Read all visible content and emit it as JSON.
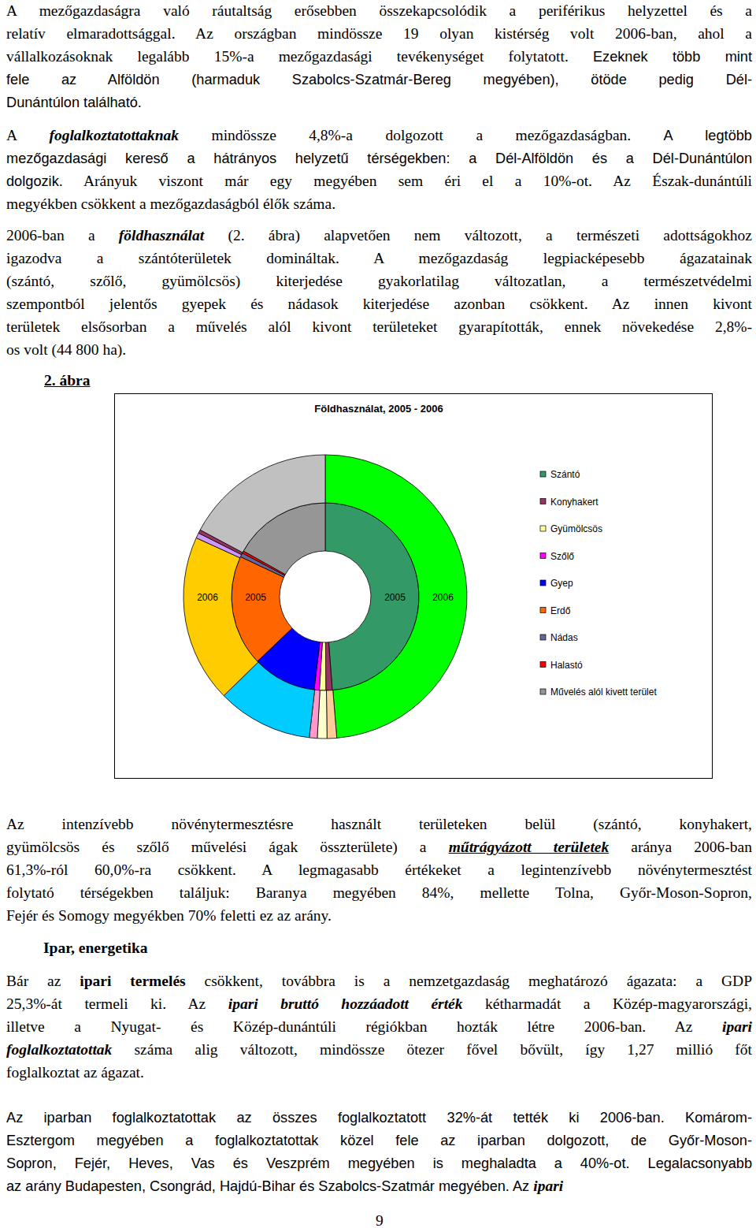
{
  "document": {
    "blocks": [
      {
        "kind": "paragraph",
        "lines": [
          [
            "A mezőgazdaságra való ráutaltság erősebben összekapcsolódik a periférikus helyzettel és a"
          ],
          [
            "relatív elmaradottsággal. Az országban mindössze 19 olyan kistérség volt 2006-ban, ahol a"
          ],
          [
            "vállalkozásoknak legalább 15%-a mezőgazdasági tevékenységet folytatott. ",
            {
              "text": "Ezeknek több mint",
              "style": "sans"
            }
          ],
          [
            {
              "text": "fele az Alföldön (harmaduk Szabolcs-Szatmár-Bereg megyében), ötöde pedig Dél-",
              "style": "sans"
            }
          ],
          [
            {
              "text": "Dunántúlon található.",
              "style": "sans"
            }
          ]
        ]
      },
      {
        "kind": "paragraph",
        "lines": [
          [
            "A ",
            {
              "text": "foglalkoztatottaknak",
              "style": "bold-italic"
            },
            " mindössze 4,8%-a dolgozott a mezőgazdaságban. ",
            {
              "text": "A legtöbb",
              "style": "sans"
            }
          ],
          [
            {
              "text": "mezőgazdasági kereső a hátrányos helyzetű térségekben: a Dél-Alföldön és a Dél-Dunántúlon",
              "style": "sans"
            }
          ],
          [
            {
              "text": "dolgozik.",
              "style": "sans"
            },
            " Arányuk viszont már egy megyében sem éri el a 10%-ot. Az Észak-dunántúli"
          ],
          [
            "megyékben csökkent a mezőgazdaságból élők száma."
          ]
        ]
      },
      {
        "kind": "paragraph",
        "lines": [
          [
            "2006-ban a ",
            {
              "text": "földhasználat",
              "style": "bold-italic"
            },
            " (2. ábra) alapvetően nem változott, a természeti adottságokhoz"
          ],
          [
            "igazodva a szántóterületek domináltak. A mezőgazdaság legpiacképesebb ágazatainak"
          ],
          [
            "(szántó, szőlő, gyümölcsös) kiterjedése gyakorlatilag változatlan, a természetvédelmi"
          ],
          [
            "szempontból jelentős gyepek és nádasok kiterjedése azonban csökkent. Az innen kivont"
          ],
          [
            "területek elsősorban a művelés alól kivont területeket gyarapították, ennek növekedése 2,8%-"
          ],
          [
            "os volt (44 800 ha)."
          ]
        ]
      },
      {
        "kind": "figure_label",
        "text": "2. ábra"
      },
      {
        "kind": "figure"
      },
      {
        "kind": "paragraph",
        "lines": [
          [
            "Az intenzívebb növénytermesztésre használt területeken belül (szántó, konyhakert,"
          ],
          [
            "gyümölcsös és szőlő művelési ágak összterülete) a ",
            {
              "text": "műtrágyázott területek",
              "style": "bold-italic-underline"
            },
            " aránya 2006-ban"
          ],
          [
            "61,3%-ról 60,0%-ra csökkent. A legmagasabb értékeket a legintenzívebb növénytermesztést"
          ],
          [
            "folytató térségekben találjuk: Baranya megyében 84%, mellette Tolna, Győr-Moson-Sopron,"
          ],
          [
            "Fejér és Somogy megyékben 70% feletti ez az arány."
          ]
        ]
      },
      {
        "kind": "heading",
        "text": "Ipar, energetika"
      },
      {
        "kind": "paragraph",
        "lines": [
          [
            "Bár az ",
            {
              "text": "ipari termelés",
              "style": "bold"
            },
            " csökkent, továbbra is a nemzetgazdaság meghatározó ágazata: a GDP"
          ],
          [
            "25,3%-át termeli ki. Az ",
            {
              "text": "ipari bruttó hozzáadott érték",
              "style": "bold-italic"
            },
            " kétharmadát a Közép-magyarországi,"
          ],
          [
            "illetve a Nyugat- és Közép-dunántúli régiókban hozták létre 2006-ban. Az ",
            {
              "text": "ipari",
              "style": "bold-italic"
            }
          ],
          [
            {
              "text": "foglalkoztatottak",
              "style": "bold-italic"
            },
            " száma alig változott, mindössze ötezer fővel bővült, így 1,27 millió főt"
          ],
          [
            "foglalkoztat az ágazat."
          ]
        ]
      },
      {
        "kind": "paragraph",
        "lines": [
          [
            {
              "text": "Az iparban foglalkoztatottak az összes foglalkoztatott 32%-át tették ki 2006-ban. Komárom-",
              "style": "sans"
            }
          ],
          [
            {
              "text": "Esztergom megyében a foglalkoztatottak közel fele az iparban dolgozott, de Győr-Moson-",
              "style": "sans"
            }
          ],
          [
            {
              "text": "Sopron, Fejér, Heves, Vas és Veszprém megyében is meghaladta a 40%-ot. Legalacsonyabb",
              "style": "sans"
            }
          ],
          [
            {
              "text": "az arány Budapesten, Csongrád, Hajdú-Bihar és Szabolcs-Szatmár megyében. Az ",
              "style": "sans"
            },
            {
              "text": "ipari",
              "style": "bold-italic"
            }
          ]
        ]
      },
      {
        "kind": "page_number",
        "text": "9"
      }
    ]
  },
  "chart_data": {
    "type": "donut",
    "title": "Földhasználat, 2005 - 2006",
    "legend": "right",
    "categories": [
      "Szántó",
      "Konyhakert",
      "Gyümölcsös",
      "Szőlő",
      "Gyep",
      "Erdő",
      "Nádas",
      "Halastó",
      "Művelés alól kivett terület"
    ],
    "series": [
      {
        "name": "2005",
        "colors": [
          "#339966",
          "#993366",
          "#ffff99",
          "#ff00ff",
          "#0000ff",
          "#ff6600",
          "#666699",
          "#ff0000",
          "#969696"
        ],
        "values": [
          48.8,
          1.1,
          1.1,
          0.9,
          11.0,
          19.1,
          0.7,
          0.4,
          16.9
        ]
      },
      {
        "name": "2006",
        "colors": [
          "#00ff00",
          "#ffcc99",
          "#ffffcc",
          "#ff99cc",
          "#00ccff",
          "#ffcc00",
          "#cc99ff",
          "#993366",
          "#c0c0c0"
        ],
        "values": [
          48.7,
          1.1,
          1.1,
          0.9,
          10.9,
          19.1,
          0.6,
          0.4,
          17.2
        ]
      }
    ]
  }
}
